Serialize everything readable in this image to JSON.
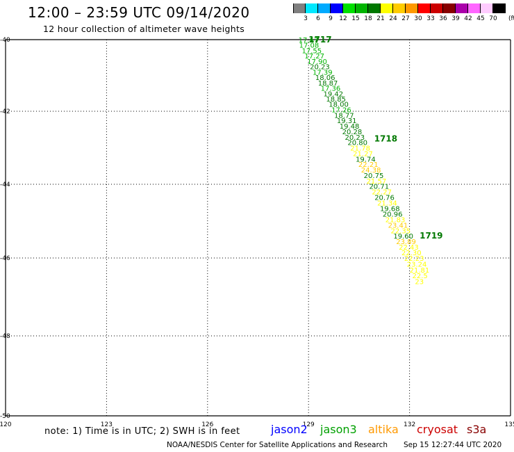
{
  "title": "12:00 – 23:59 UTC 09/14/2020",
  "subtitle": "12 hour collection of altimeter wave heights",
  "color_scale": {
    "unit": "(ft)",
    "labels": [
      "3",
      "6",
      "9",
      "12",
      "15",
      "18",
      "21",
      "24",
      "27",
      "30",
      "33",
      "36",
      "39",
      "42",
      "45",
      "70"
    ],
    "colors": [
      "#808080",
      "#00e8ff",
      "#00aaff",
      "#0000ff",
      "#00e000",
      "#00b400",
      "#007800",
      "#ffff00",
      "#ffcc00",
      "#ff9900",
      "#ff0000",
      "#cc0000",
      "#880000",
      "#aa00aa",
      "#ff66ff",
      "#ffccff",
      "#000000"
    ]
  },
  "map": {
    "lon_ticks": [
      "120",
      "123",
      "126",
      "129",
      "132",
      "135"
    ],
    "lat_ticks": [
      "-40",
      "-42",
      "-44",
      "-46",
      "-48",
      "-50"
    ],
    "lon_range": [
      120,
      135
    ],
    "lat_range": [
      -50,
      -40
    ]
  },
  "track_time_labels": [
    {
      "text": "1717",
      "lon": 129.0,
      "lat": -40.0
    },
    {
      "text": "1718",
      "lon": 130.95,
      "lat": -42.75
    },
    {
      "text": "1719",
      "lon": 132.3,
      "lat": -45.4
    }
  ],
  "track_points": [
    {
      "lon": 128.7,
      "lat": -40.0,
      "swh": "17.67",
      "c": "#00b400"
    },
    {
      "lon": 128.72,
      "lat": -40.15,
      "swh": "17.08",
      "c": "#00b400"
    },
    {
      "lon": 128.8,
      "lat": -40.3,
      "swh": "17.55",
      "c": "#00b400"
    },
    {
      "lon": 128.88,
      "lat": -40.45,
      "swh": "17.27",
      "c": "#00b400"
    },
    {
      "lon": 128.96,
      "lat": -40.6,
      "swh": "17.90",
      "c": "#00b400"
    },
    {
      "lon": 129.04,
      "lat": -40.75,
      "swh": "20.23",
      "c": "#007800"
    },
    {
      "lon": 129.12,
      "lat": -40.9,
      "swh": "17.39",
      "c": "#00b400"
    },
    {
      "lon": 129.2,
      "lat": -41.05,
      "swh": "18.06",
      "c": "#007800"
    },
    {
      "lon": 129.28,
      "lat": -41.2,
      "swh": "18.87",
      "c": "#007800"
    },
    {
      "lon": 129.36,
      "lat": -41.35,
      "swh": "17.36",
      "c": "#00b400"
    },
    {
      "lon": 129.44,
      "lat": -41.5,
      "swh": "19.42",
      "c": "#007800"
    },
    {
      "lon": 129.52,
      "lat": -41.65,
      "swh": "18.85",
      "c": "#007800"
    },
    {
      "lon": 129.6,
      "lat": -41.8,
      "swh": "18.00",
      "c": "#007800"
    },
    {
      "lon": 129.68,
      "lat": -41.95,
      "swh": "17.26",
      "c": "#00b400"
    },
    {
      "lon": 129.76,
      "lat": -42.1,
      "swh": "18.77",
      "c": "#007800"
    },
    {
      "lon": 129.84,
      "lat": -42.25,
      "swh": "19.31",
      "c": "#007800"
    },
    {
      "lon": 129.92,
      "lat": -42.4,
      "swh": "19.48",
      "c": "#007800"
    },
    {
      "lon": 130.0,
      "lat": -42.55,
      "swh": "20.28",
      "c": "#007800"
    },
    {
      "lon": 130.08,
      "lat": -42.7,
      "swh": "20.23",
      "c": "#007800"
    },
    {
      "lon": 130.16,
      "lat": -42.85,
      "swh": "20.80",
      "c": "#007800"
    },
    {
      "lon": 130.24,
      "lat": -43.0,
      "swh": "21.78",
      "c": "#ffff00"
    },
    {
      "lon": 130.32,
      "lat": -43.15,
      "swh": "21.27",
      "c": "#ffff00"
    },
    {
      "lon": 130.4,
      "lat": -43.3,
      "swh": "19.74",
      "c": "#007800"
    },
    {
      "lon": 130.48,
      "lat": -43.45,
      "swh": "22.21",
      "c": "#ffcc00"
    },
    {
      "lon": 130.56,
      "lat": -43.6,
      "swh": "24.38",
      "c": "#ffcc00"
    },
    {
      "lon": 130.64,
      "lat": -43.75,
      "swh": "20.75",
      "c": "#007800"
    },
    {
      "lon": 130.72,
      "lat": -43.9,
      "swh": "21.57",
      "c": "#ffff00"
    },
    {
      "lon": 130.8,
      "lat": -44.05,
      "swh": "20.71",
      "c": "#007800"
    },
    {
      "lon": 130.88,
      "lat": -44.2,
      "swh": "22.27",
      "c": "#ffff00"
    },
    {
      "lon": 130.96,
      "lat": -44.35,
      "swh": "20.76",
      "c": "#007800"
    },
    {
      "lon": 131.04,
      "lat": -44.5,
      "swh": "21.34",
      "c": "#ffff00"
    },
    {
      "lon": 131.12,
      "lat": -44.65,
      "swh": "19.68",
      "c": "#007800"
    },
    {
      "lon": 131.2,
      "lat": -44.8,
      "swh": "20.96",
      "c": "#007800"
    },
    {
      "lon": 131.28,
      "lat": -44.95,
      "swh": "21.83",
      "c": "#ffff00"
    },
    {
      "lon": 131.36,
      "lat": -45.1,
      "swh": "23.41",
      "c": "#ffcc00"
    },
    {
      "lon": 131.44,
      "lat": -45.25,
      "swh": "22.35",
      "c": "#ffff00"
    },
    {
      "lon": 131.52,
      "lat": -45.4,
      "swh": "19.60",
      "c": "#007800"
    },
    {
      "lon": 131.6,
      "lat": -45.55,
      "swh": "23.89",
      "c": "#ffcc00"
    },
    {
      "lon": 131.68,
      "lat": -45.7,
      "swh": "22.43",
      "c": "#ffff00"
    },
    {
      "lon": 131.76,
      "lat": -45.85,
      "swh": "22.30",
      "c": "#ffff00"
    },
    {
      "lon": 131.84,
      "lat": -46.0,
      "swh": "22.23",
      "c": "#ffff00"
    },
    {
      "lon": 131.92,
      "lat": -46.15,
      "swh": "23.24",
      "c": "#ffff00"
    },
    {
      "lon": 132.0,
      "lat": -46.3,
      "swh": "21.81",
      "c": "#ffff00"
    },
    {
      "lon": 132.08,
      "lat": -46.45,
      "swh": "22.5",
      "c": "#ffff00"
    },
    {
      "lon": 132.16,
      "lat": -46.6,
      "swh": "23",
      "c": "#ffff00"
    }
  ],
  "note": "note: 1) Time is in UTC; 2) SWH is in feet",
  "satellites": [
    {
      "name": "jason2",
      "color": "#0000ff"
    },
    {
      "name": "jason3",
      "color": "#00a000"
    },
    {
      "name": "altika",
      "color": "#ff9900"
    },
    {
      "name": "cryosat",
      "color": "#cc0000"
    },
    {
      "name": "s3a",
      "color": "#880000"
    }
  ],
  "footer_left": "NOAA/NESDIS Center for Satellite Applications and Research",
  "footer_right": "Sep 15 12:27:44 UTC 2020"
}
